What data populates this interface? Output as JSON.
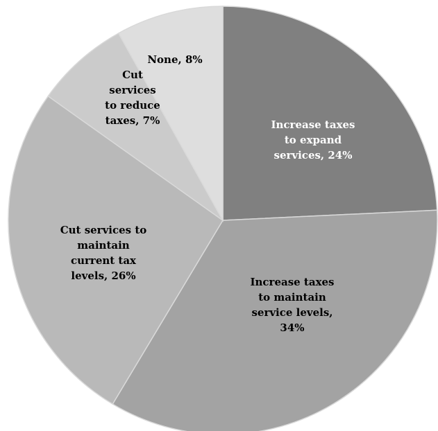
{
  "chart_data": {
    "type": "pie",
    "title": "",
    "start": "top",
    "direction": "clockwise",
    "slices": [
      {
        "label_lines": [
          "Increase taxes",
          "to expand",
          "services, 24%"
        ],
        "category": "Increase taxes to expand services",
        "value": 24,
        "color": "#808080",
        "text_color": "#ffffff"
      },
      {
        "label_lines": [
          "Increase taxes",
          "to maintain",
          "service levels,",
          "34%"
        ],
        "category": "Increase taxes to maintain service levels",
        "value": 34,
        "color": "#a3a3a3",
        "text_color": "#000000"
      },
      {
        "label_lines": [
          "Cut services to",
          "maintain",
          "current tax",
          "levels, 26%"
        ],
        "category": "Cut services to maintain current tax levels",
        "value": 26,
        "color": "#b9b9b9",
        "text_color": "#000000"
      },
      {
        "label_lines": [
          "Cut",
          "services",
          "to reduce",
          "taxes, 7%"
        ],
        "category": "Cut services to reduce taxes",
        "value": 7,
        "color": "#cbcbcb",
        "text_color": "#000000"
      },
      {
        "label_lines": [
          "None, 8%"
        ],
        "category": "None",
        "value": 8,
        "color": "#dedede",
        "text_color": "#000000"
      }
    ]
  }
}
